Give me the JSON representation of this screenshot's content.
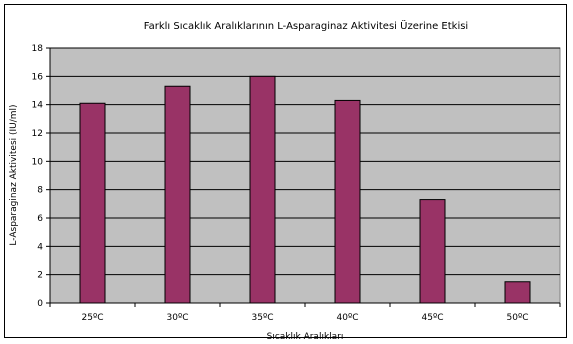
{
  "chart_data": {
    "type": "bar",
    "title": "Farklı Sıcaklık Aralıklarının L-Asparaginaz Aktivitesi Üzerine Etkisi",
    "xlabel": "Sıcaklık Aralıkları",
    "ylabel": "L-Asparaginaz Aktivitesi (IU/ml)",
    "categories": [
      "25ºC",
      "30ºC",
      "35ºC",
      "40ºC",
      "45ºC",
      "50ºC"
    ],
    "values": [
      14.1,
      15.3,
      16.0,
      14.3,
      7.3,
      1.5
    ],
    "ylim": [
      0,
      18
    ],
    "yticks": [
      0,
      2,
      4,
      6,
      8,
      10,
      12,
      14,
      16,
      18
    ],
    "ytick_labels": [
      "0",
      "2",
      "4",
      "6",
      "8",
      "10",
      "12",
      "14",
      "16",
      "18"
    ],
    "grid": true,
    "legend": "none",
    "colors": {
      "bar": "#993366",
      "plot_background": "#c0c0c0",
      "grid": "#000000"
    }
  }
}
